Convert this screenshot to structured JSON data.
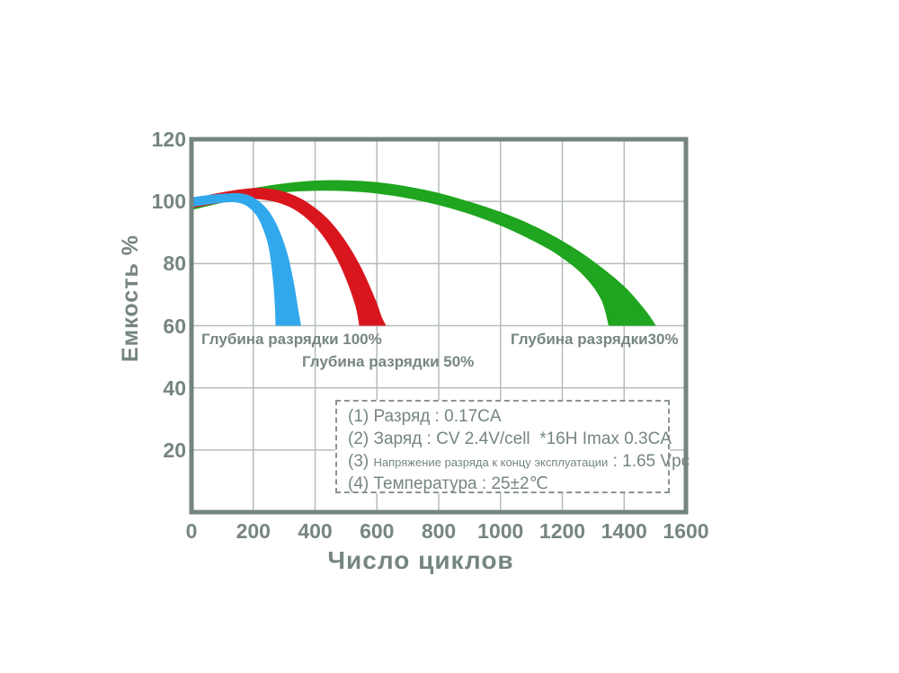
{
  "chart_data": {
    "type": "area",
    "title": "",
    "xlabel": "Число циклов",
    "ylabel": "Емкость %",
    "xlim": [
      0,
      1600
    ],
    "ylim": [
      0,
      120
    ],
    "x_ticks": [
      0,
      200,
      400,
      600,
      800,
      1000,
      1200,
      1400,
      1600
    ],
    "y_ticks": [
      120,
      100,
      80,
      60,
      40,
      20
    ],
    "grid": true,
    "legend_position": "inside-bottom",
    "colors": {
      "frame": "#74847e",
      "grid": "#b6bdb9",
      "text": "#76867f",
      "blue_band": "#31a8ec",
      "red_band": "#d9161d",
      "green_band": "#1fa51f"
    },
    "series": [
      {
        "name": "Глубина разрядки 100%",
        "color": "#31a8ec",
        "units": {
          "x": "циклы",
          "y": "% емкости"
        },
        "top": [
          [
            0,
            101.3
          ],
          [
            60,
            102.1
          ],
          [
            120,
            102.6
          ],
          [
            165,
            102.5
          ],
          [
            205,
            101.0
          ],
          [
            245,
            97.5
          ],
          [
            278,
            92.0
          ],
          [
            308,
            84.0
          ],
          [
            330,
            74.5
          ],
          [
            346,
            65.0
          ],
          [
            355,
            60.0
          ]
        ],
        "bottom": [
          [
            0,
            98.2
          ],
          [
            60,
            99.1
          ],
          [
            110,
            99.7
          ],
          [
            150,
            99.6
          ],
          [
            182,
            98.3
          ],
          [
            212,
            95.2
          ],
          [
            236,
            90.0
          ],
          [
            252,
            84.0
          ],
          [
            264,
            74.5
          ],
          [
            270,
            66.0
          ],
          [
            272,
            60.0
          ]
        ]
      },
      {
        "name": "Глубина разрядки 50%",
        "color": "#d9161d",
        "units": {
          "x": "циклы",
          "y": "% емкости"
        },
        "top": [
          [
            0,
            100.8
          ],
          [
            80,
            102.6
          ],
          [
            160,
            103.9
          ],
          [
            230,
            104.3
          ],
          [
            300,
            103.1
          ],
          [
            370,
            100.0
          ],
          [
            440,
            94.5
          ],
          [
            500,
            87.0
          ],
          [
            550,
            78.5
          ],
          [
            595,
            68.5
          ],
          [
            615,
            63.0
          ],
          [
            630,
            60.0
          ]
        ],
        "bottom": [
          [
            0,
            97.8
          ],
          [
            80,
            99.3
          ],
          [
            150,
            100.4
          ],
          [
            220,
            100.7
          ],
          [
            290,
            99.3
          ],
          [
            350,
            96.3
          ],
          [
            410,
            90.8
          ],
          [
            460,
            83.5
          ],
          [
            500,
            75.0
          ],
          [
            530,
            66.5
          ],
          [
            543,
            60.0
          ]
        ]
      },
      {
        "name": "Глубина разрядки30%",
        "color": "#1fa51f",
        "units": {
          "x": "циклы",
          "y": "% емкости"
        },
        "top": [
          [
            0,
            99.6
          ],
          [
            100,
            102.1
          ],
          [
            200,
            104.3
          ],
          [
            300,
            105.8
          ],
          [
            400,
            106.7
          ],
          [
            500,
            106.8
          ],
          [
            600,
            106.2
          ],
          [
            700,
            104.8
          ],
          [
            800,
            102.7
          ],
          [
            900,
            99.9
          ],
          [
            1000,
            96.6
          ],
          [
            1100,
            92.5
          ],
          [
            1200,
            87.3
          ],
          [
            1300,
            80.8
          ],
          [
            1400,
            72.7
          ],
          [
            1470,
            64.8
          ],
          [
            1503,
            60.0
          ]
        ],
        "bottom": [
          [
            0,
            97.2
          ],
          [
            100,
            99.6
          ],
          [
            200,
            101.6
          ],
          [
            300,
            102.9
          ],
          [
            400,
            103.4
          ],
          [
            500,
            103.3
          ],
          [
            600,
            102.5
          ],
          [
            700,
            101.0
          ],
          [
            800,
            98.8
          ],
          [
            900,
            95.9
          ],
          [
            1000,
            92.2
          ],
          [
            1100,
            87.6
          ],
          [
            1190,
            82.5
          ],
          [
            1270,
            76.0
          ],
          [
            1325,
            68.5
          ],
          [
            1350,
            60.0
          ]
        ]
      }
    ]
  },
  "legend": {
    "line1": "(1) Разряд : 0.17CA",
    "line2": "(2) Заряд : CV 2.4V/cell  *16H Imax 0.3CA",
    "line3_num": "(3) ",
    "line3_small": "Напряжение разряда к концу эксплуатации",
    "line3_tail": " : 1.65 Vpc",
    "line4": "(4) Температура : 25±2℃"
  }
}
